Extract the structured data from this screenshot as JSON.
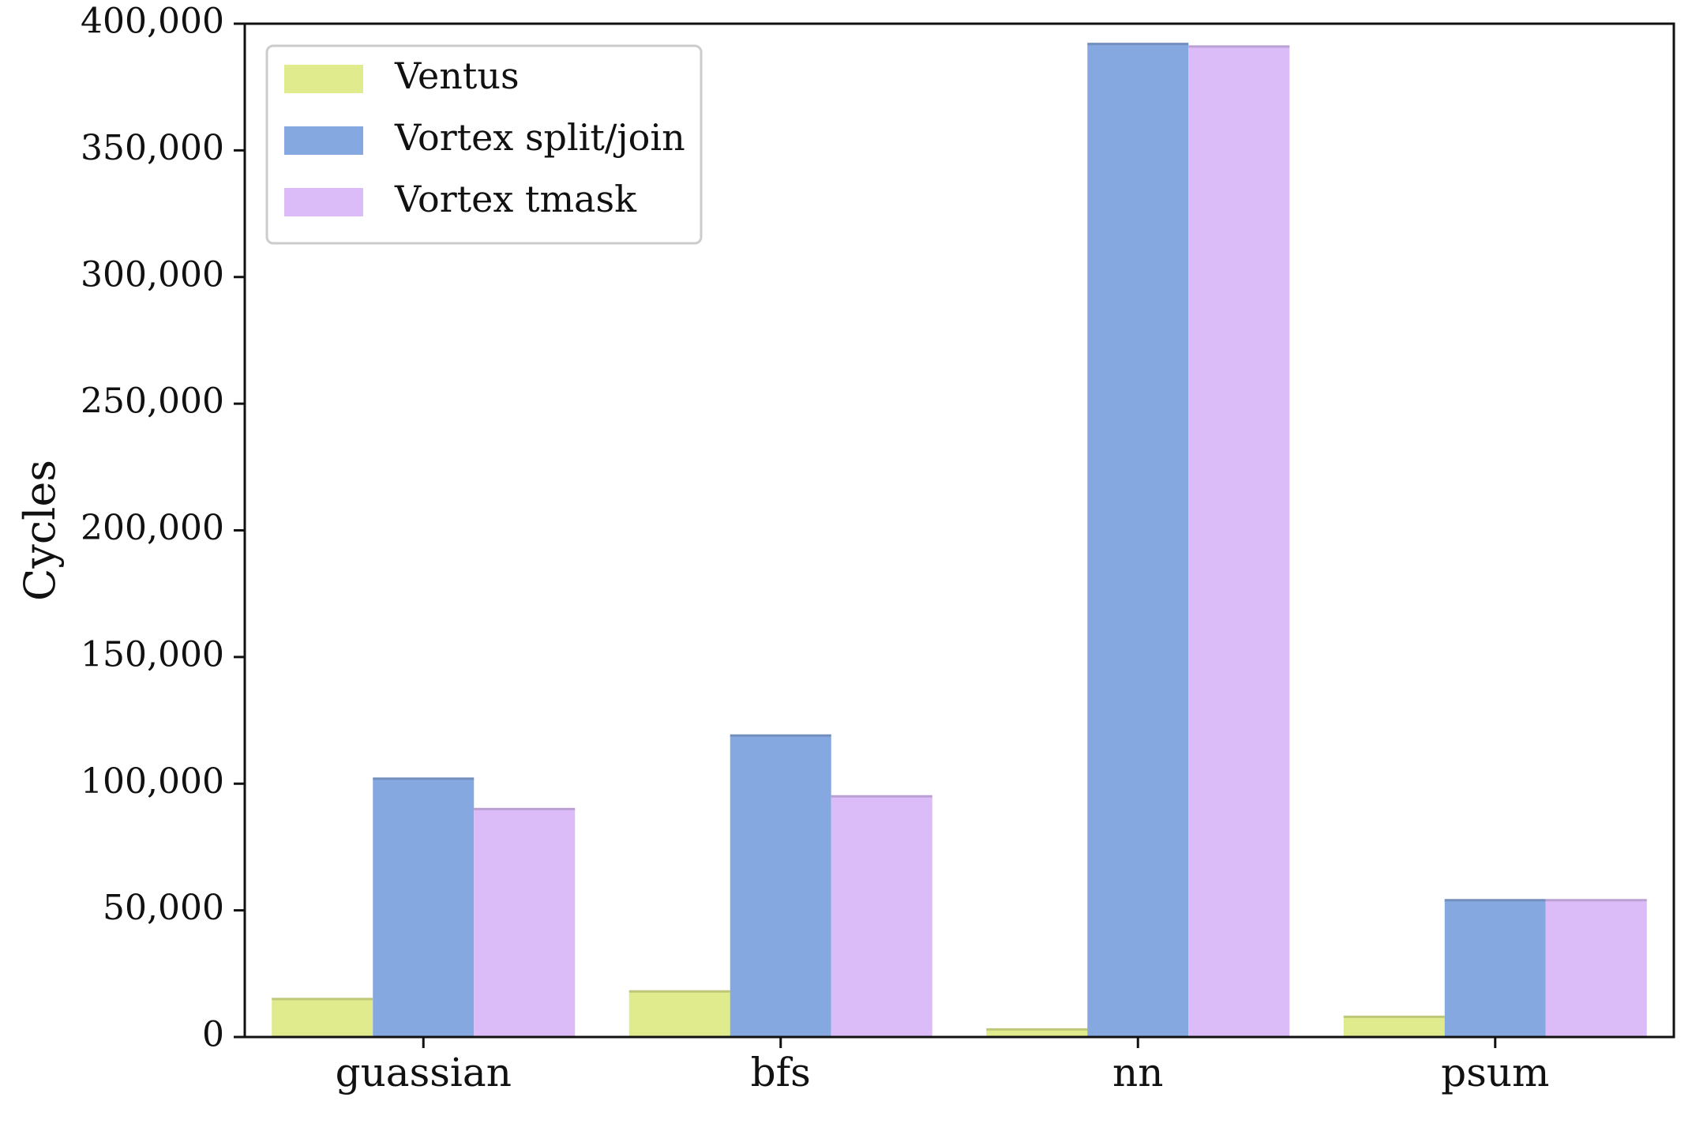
{
  "chart_data": {
    "type": "bar",
    "categories": [
      "guassian",
      "bfs",
      "nn",
      "psum"
    ],
    "series": [
      {
        "name": "Ventus",
        "color": "#dfeb8c",
        "values": [
          15000,
          18000,
          3000,
          8000
        ]
      },
      {
        "name": "Vortex split/join",
        "color": "#86a8e0",
        "values": [
          102000,
          119000,
          392000,
          54000
        ]
      },
      {
        "name": "Vortex tmask",
        "color": "#dcbcf8",
        "values": [
          90000,
          95000,
          391000,
          54000
        ]
      }
    ],
    "title": "",
    "xlabel": "",
    "ylabel": "Cycles",
    "ylim": [
      0,
      400000
    ],
    "yticks": [
      0,
      50000,
      100000,
      150000,
      200000,
      250000,
      300000,
      350000,
      400000
    ],
    "ytick_labels": [
      "0",
      "50,000",
      "100,000",
      "150,000",
      "200,000",
      "250,000",
      "300,000",
      "350,000",
      "400,000"
    ],
    "grid": false,
    "legend_position": "top-left"
  }
}
